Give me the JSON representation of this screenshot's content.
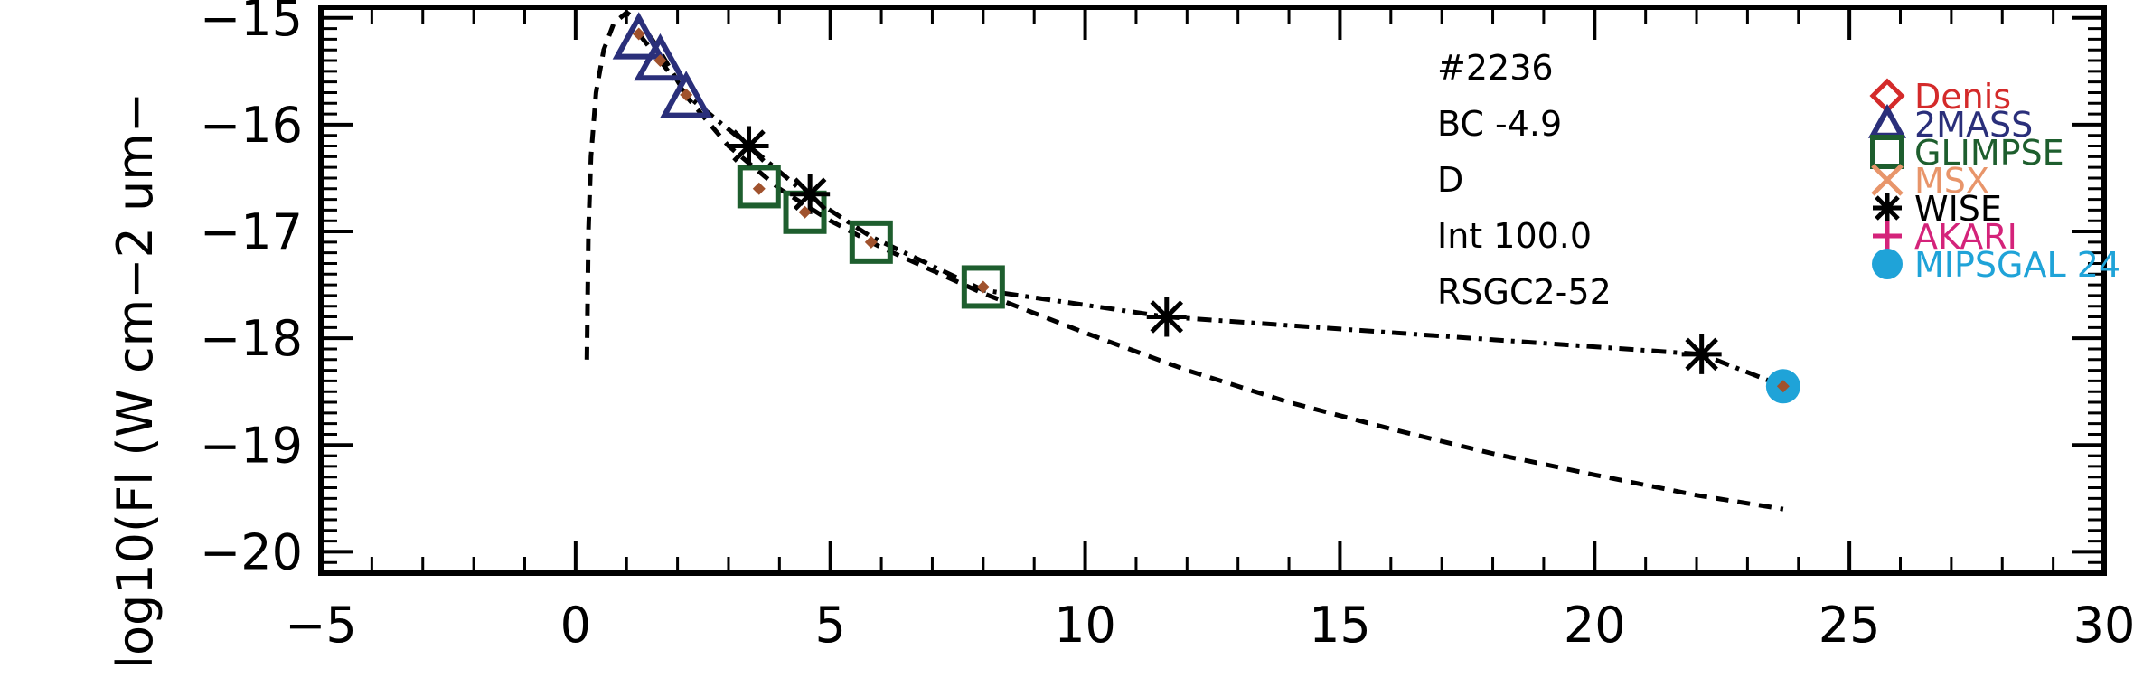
{
  "chart_data": {
    "type": "scatter",
    "ylabel": "log10(Fl (W cm−2 um−",
    "xlim": [
      -5,
      30
    ],
    "ylim": [
      -20.2,
      -14.9
    ],
    "x_ticks": [
      -5,
      0,
      5,
      10,
      15,
      20,
      25,
      30
    ],
    "x_tick_labels": [
      "−5",
      "0",
      "5",
      "10",
      "15",
      "20",
      "25",
      "30"
    ],
    "y_ticks": [
      -15,
      -16,
      -17,
      -18,
      -19,
      -20
    ],
    "y_tick_labels": [
      "−15",
      "−16",
      "−17",
      "−18",
      "−19",
      "−20"
    ],
    "annotations": [
      "#2236",
      "BC -4.9",
      "D",
      "Int 100.0",
      "RSGC2-52"
    ],
    "legend_position": "top-right",
    "legend": [
      {
        "name": "Denis",
        "marker": "diamond",
        "color": "#d42a2a"
      },
      {
        "name": "2MASS",
        "marker": "triangle",
        "color": "#2a2f7a"
      },
      {
        "name": "GLIMPSE",
        "marker": "square",
        "color": "#1e5e2e"
      },
      {
        "name": "MSX",
        "marker": "x",
        "color": "#e8956a"
      },
      {
        "name": "WISE",
        "marker": "asterisk",
        "color": "#000000"
      },
      {
        "name": "AKARI",
        "marker": "plus",
        "color": "#d4237a"
      },
      {
        "name": "MIPSGAL 24",
        "marker": "circle",
        "color": "#1fa3d8"
      }
    ],
    "series": [
      {
        "name": "2MASS",
        "marker": "triangle",
        "color": "#2a2f7a",
        "x": [
          1.24,
          1.66,
          2.17
        ],
        "y": [
          -15.2,
          -15.4,
          -15.75
        ]
      },
      {
        "name": "GLIMPSE",
        "marker": "square",
        "color": "#1e5e2e",
        "x": [
          3.6,
          4.5,
          5.8,
          8.0
        ],
        "y": [
          -16.58,
          -16.82,
          -17.1,
          -17.52
        ]
      },
      {
        "name": "WISE",
        "marker": "asterisk",
        "color": "#000000",
        "x": [
          3.4,
          4.6,
          11.6,
          22.1
        ],
        "y": [
          -16.2,
          -16.65,
          -17.8,
          -18.15
        ]
      },
      {
        "name": "MIPSGAL 24",
        "marker": "circle",
        "color": "#1fa3d8",
        "x": [
          23.7
        ],
        "y": [
          -18.45
        ]
      },
      {
        "name": "model",
        "marker": "small-diamond",
        "color": "#a0522d",
        "x": [
          1.24,
          1.66,
          2.17,
          3.6,
          4.5,
          5.8,
          8.0,
          23.7
        ],
        "y": [
          -15.15,
          -15.4,
          -15.72,
          -16.6,
          -16.82,
          -17.1,
          -17.52,
          -18.45
        ]
      }
    ],
    "lines": [
      {
        "style": "dashed",
        "x": [
          0.22,
          0.25,
          0.3,
          0.4,
          0.55,
          0.75,
          1.0,
          1.3,
          1.7,
          2.2,
          3.0,
          4.0,
          5.0,
          6.0,
          8.0,
          10.0,
          12.0,
          14.0,
          16.0,
          18.0,
          20.0,
          22.0,
          23.7
        ],
        "y": [
          -18.2,
          -17.0,
          -16.3,
          -15.7,
          -15.3,
          -15.05,
          -14.95,
          -15.05,
          -15.35,
          -15.75,
          -16.2,
          -16.6,
          -16.9,
          -17.15,
          -17.58,
          -17.95,
          -18.3,
          -18.6,
          -18.85,
          -19.08,
          -19.28,
          -19.47,
          -19.6
        ]
      },
      {
        "style": "dashdot",
        "x": [
          1.24,
          1.66,
          2.17,
          3.4,
          4.6,
          5.8,
          8.0,
          11.6,
          22.1,
          23.7
        ],
        "y": [
          -15.15,
          -15.4,
          -15.72,
          -16.2,
          -16.68,
          -17.05,
          -17.55,
          -17.8,
          -18.15,
          -18.45
        ]
      }
    ]
  }
}
